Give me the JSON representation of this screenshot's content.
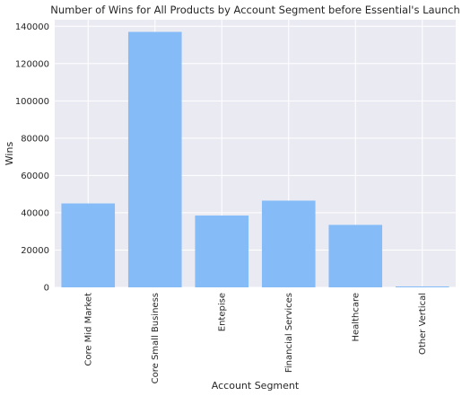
{
  "chart_data": {
    "type": "bar",
    "title": "Number of Wins for All Products by Account Segment before Essential's Launch",
    "xlabel": "Account Segment",
    "ylabel": "Wins",
    "categories": [
      "Core Mid Market",
      "Core Small Business",
      "Entepise",
      "Financial Services",
      "Healthcare",
      "Other Vertical"
    ],
    "values": [
      45000,
      137000,
      38500,
      46500,
      33500,
      500
    ],
    "ylim": [
      0,
      143500
    ],
    "yticks": [
      0,
      20000,
      40000,
      60000,
      80000,
      100000,
      120000,
      140000
    ],
    "grid": true,
    "legend": "none",
    "colors": {
      "background": "#eaeaf2",
      "grid": "#ffffff",
      "bar": "#85bcf8",
      "text": "#262626"
    }
  }
}
